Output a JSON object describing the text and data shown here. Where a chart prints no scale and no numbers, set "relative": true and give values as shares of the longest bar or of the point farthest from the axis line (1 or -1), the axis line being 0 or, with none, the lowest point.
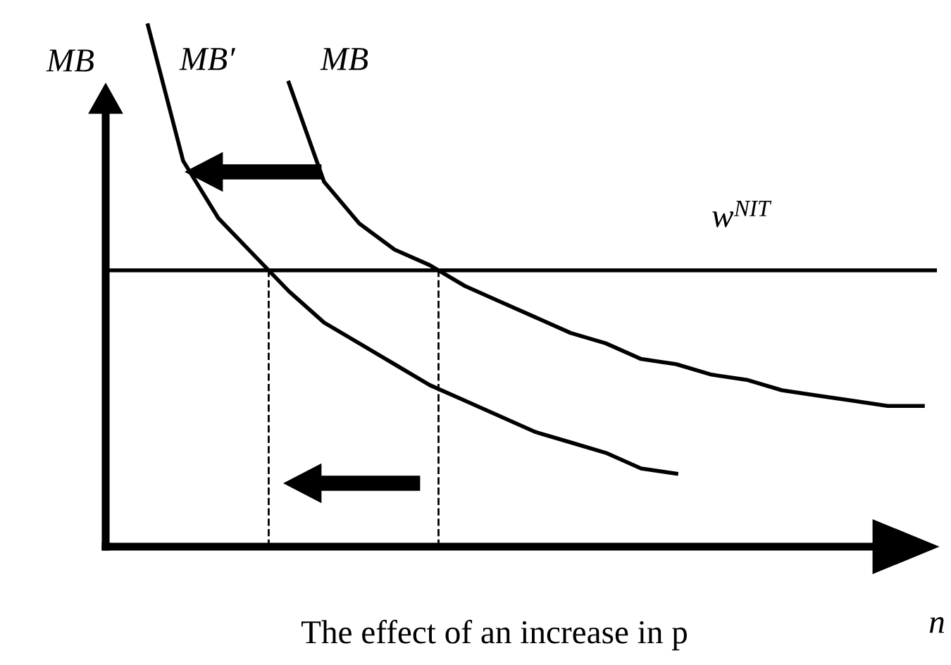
{
  "chart_data": {
    "type": "line",
    "relative": true,
    "ylabel": "MB",
    "xlabel": "n",
    "annotations": [
      "The effect of an increase in p"
    ],
    "categories": [
      null,
      null,
      null,
      null,
      null,
      null,
      null,
      null,
      null,
      null,
      null,
      null,
      null,
      null,
      null,
      null,
      null,
      null,
      null,
      null,
      null,
      null,
      null
    ],
    "series": [
      {
        "name": "MB′",
        "color": "#000000",
        "values": [
          1.0,
          0.74,
          0.63,
          0.56,
          0.49,
          0.43,
          0.39,
          0.35,
          0.31,
          0.28,
          0.25,
          0.22,
          0.2,
          0.18,
          0.15,
          0.14,
          null,
          null,
          null,
          null,
          null,
          null,
          null
        ]
      },
      {
        "name": "MB",
        "color": "#000000",
        "values": [
          null,
          null,
          null,
          null,
          0.89,
          0.7,
          0.62,
          0.57,
          0.54,
          0.5,
          0.47,
          0.44,
          0.41,
          0.39,
          0.36,
          0.35,
          0.33,
          0.32,
          0.3,
          0.29,
          0.28,
          0.27,
          0.27
        ]
      }
    ],
    "ref_lines": [
      {
        "axis": "y",
        "value": 0.53,
        "label": "w$^{NIT}$",
        "color": "#000000",
        "line_style": "solid"
      }
    ],
    "grid": false,
    "marker": "none",
    "line_style": "solid"
  }
}
